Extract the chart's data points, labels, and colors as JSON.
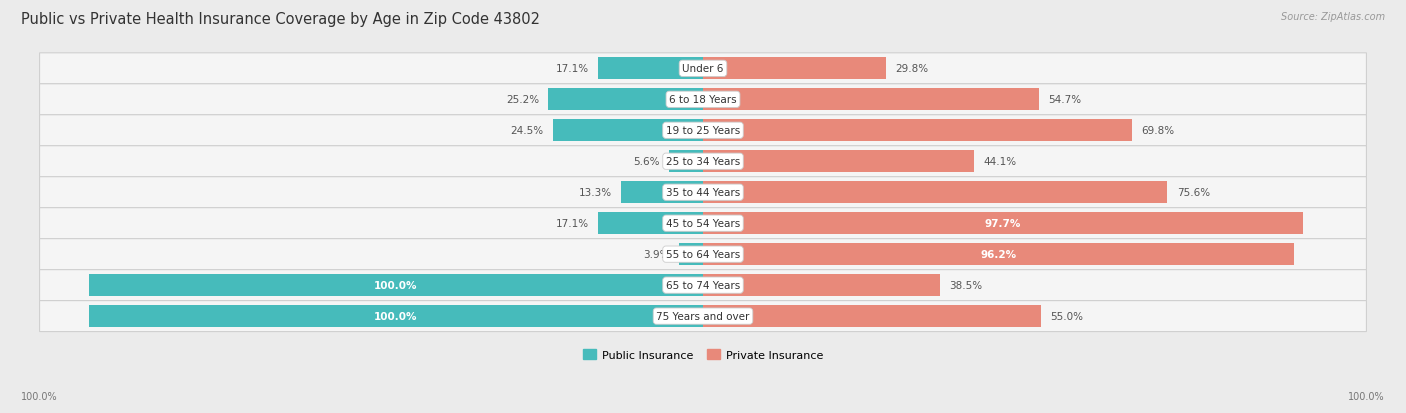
{
  "title": "Public vs Private Health Insurance Coverage by Age in Zip Code 43802",
  "source": "Source: ZipAtlas.com",
  "categories": [
    "Under 6",
    "6 to 18 Years",
    "19 to 25 Years",
    "25 to 34 Years",
    "35 to 44 Years",
    "45 to 54 Years",
    "55 to 64 Years",
    "65 to 74 Years",
    "75 Years and over"
  ],
  "public_values": [
    17.1,
    25.2,
    24.5,
    5.6,
    13.3,
    17.1,
    3.9,
    100.0,
    100.0
  ],
  "private_values": [
    29.8,
    54.7,
    69.8,
    44.1,
    75.6,
    97.7,
    96.2,
    38.5,
    55.0
  ],
  "public_color": "#46BBBB",
  "private_color": "#E8897A",
  "bg_color": "#EBEBEB",
  "row_light_color": "#F5F5F5",
  "row_dark_color": "#E8E8E8",
  "title_fontsize": 10.5,
  "label_fontsize": 7.5,
  "value_fontsize": 7.5,
  "legend_fontsize": 8,
  "axis_label_fontsize": 7,
  "max_val": 100.0
}
